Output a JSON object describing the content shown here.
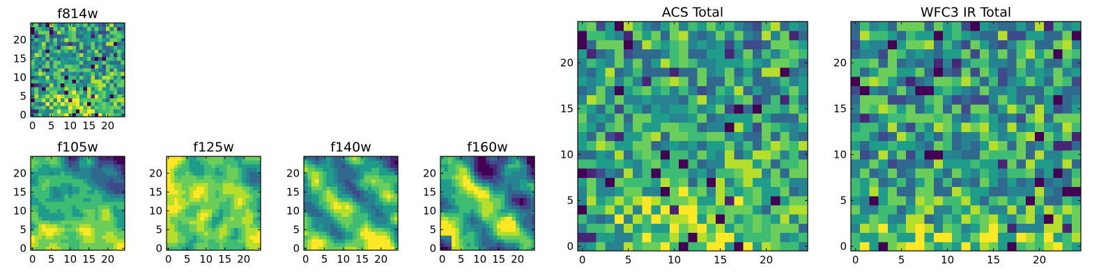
{
  "figure": {
    "palette": [
      "#440154",
      "#482677",
      "#3f4a8a",
      "#31688e",
      "#26838f",
      "#1f9d8a",
      "#3fbc73",
      "#6cce5a",
      "#b6de2b",
      "#fee825"
    ]
  },
  "chart_data": [
    {
      "type": "heatmap",
      "id": "f814w",
      "title": "f814w",
      "grid_size": [
        25,
        25
      ],
      "xlim": [
        0,
        24
      ],
      "ylim": [
        0,
        24
      ],
      "x_ticks": [
        0,
        5,
        10,
        15,
        20
      ],
      "y_ticks": [
        0,
        5,
        10,
        15,
        20
      ],
      "seed": 11,
      "pattern": "noise_bright_bottom_center"
    },
    {
      "type": "heatmap",
      "id": "f105w",
      "title": "f105w",
      "grid_size": [
        25,
        25
      ],
      "xlim": [
        0,
        24
      ],
      "ylim": [
        0,
        24
      ],
      "x_ticks": [
        0,
        5,
        10,
        15,
        20
      ],
      "y_ticks": [
        0,
        5,
        10,
        15,
        20
      ],
      "seed": 23,
      "pattern": "smooth_dark_top_right_bright_bottom"
    },
    {
      "type": "heatmap",
      "id": "f125w",
      "title": "f125w",
      "grid_size": [
        25,
        25
      ],
      "xlim": [
        0,
        24
      ],
      "ylim": [
        0,
        24
      ],
      "x_ticks": [
        0,
        5,
        10,
        15,
        20
      ],
      "y_ticks": [
        0,
        5,
        10,
        15,
        20
      ],
      "seed": 37,
      "pattern": "smooth_bright_overall"
    },
    {
      "type": "heatmap",
      "id": "f140w",
      "title": "f140w",
      "grid_size": [
        25,
        25
      ],
      "xlim": [
        0,
        24
      ],
      "ylim": [
        0,
        24
      ],
      "x_ticks": [
        0,
        5,
        10,
        15,
        20
      ],
      "y_ticks": [
        0,
        5,
        10,
        15,
        20
      ],
      "seed": 41,
      "pattern": "smooth_diagonal_bands"
    },
    {
      "type": "heatmap",
      "id": "f160w",
      "title": "f160w",
      "grid_size": [
        25,
        25
      ],
      "xlim": [
        0,
        24
      ],
      "ylim": [
        0,
        24
      ],
      "x_ticks": [
        0,
        5,
        10,
        15,
        20
      ],
      "y_ticks": [
        0,
        5,
        10,
        15,
        20
      ],
      "seed": 53,
      "pattern": "smooth_diagonal_dark_corners"
    },
    {
      "type": "heatmap",
      "id": "acs-total",
      "title": "ACS Total",
      "grid_size": [
        25,
        25
      ],
      "xlim": [
        0,
        24
      ],
      "ylim": [
        0,
        24
      ],
      "x_ticks": [
        0,
        5,
        10,
        15,
        20
      ],
      "y_ticks": [
        0,
        5,
        10,
        15,
        20
      ],
      "seed": 11,
      "pattern": "noise_bright_bottom_center"
    },
    {
      "type": "heatmap",
      "id": "wfc3-ir-total",
      "title": "WFC3 IR Total",
      "grid_size": [
        25,
        25
      ],
      "xlim": [
        0,
        24
      ],
      "ylim": [
        0,
        24
      ],
      "x_ticks": [
        0,
        5,
        10,
        15,
        20
      ],
      "y_ticks": [
        0,
        5,
        10,
        15,
        20
      ],
      "seed": 67,
      "pattern": "noise_bright_bottom"
    }
  ]
}
